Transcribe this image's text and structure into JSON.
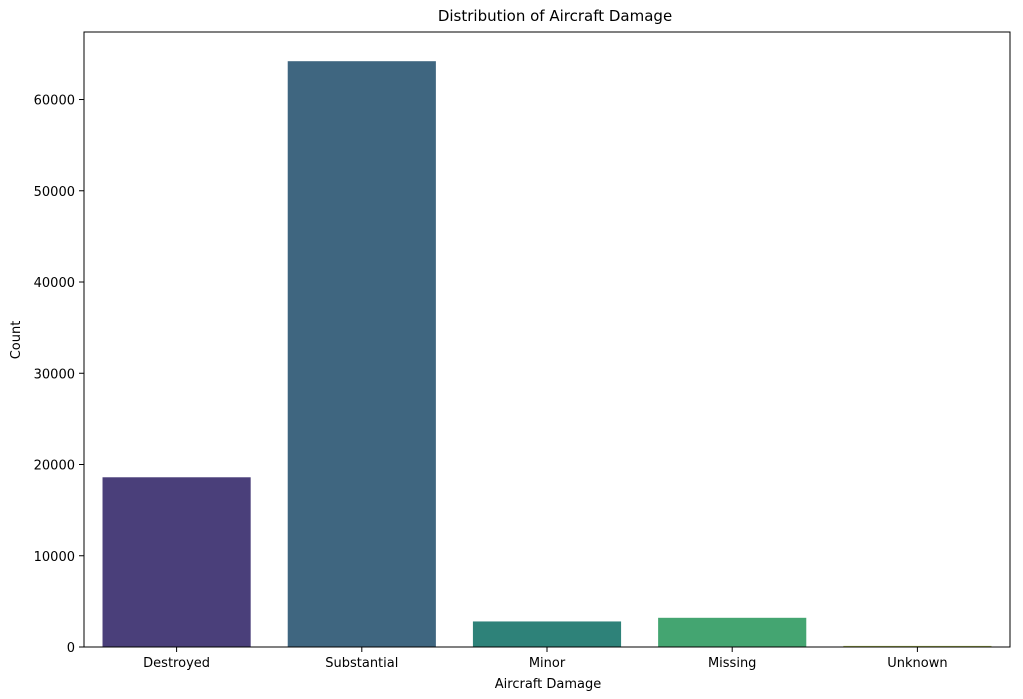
{
  "chart_data": {
    "type": "bar",
    "title": "Distribution of Aircraft Damage",
    "xlabel": "Aircraft Damage",
    "ylabel": "Count",
    "categories": [
      "Destroyed",
      "Substantial",
      "Minor",
      "Missing",
      "Unknown"
    ],
    "values": [
      18600,
      64200,
      2800,
      3200,
      120
    ],
    "colors": [
      "#4a3f7a",
      "#3f6680",
      "#2e8279",
      "#44a571",
      "#a7b84f"
    ],
    "ylim": [
      0,
      67400
    ],
    "yticks": [
      0,
      10000,
      20000,
      30000,
      40000,
      50000,
      60000
    ],
    "ytick_labels": [
      "0",
      "10000",
      "20000",
      "30000",
      "40000",
      "50000",
      "60000"
    ],
    "grid": false,
    "legend": "none"
  }
}
